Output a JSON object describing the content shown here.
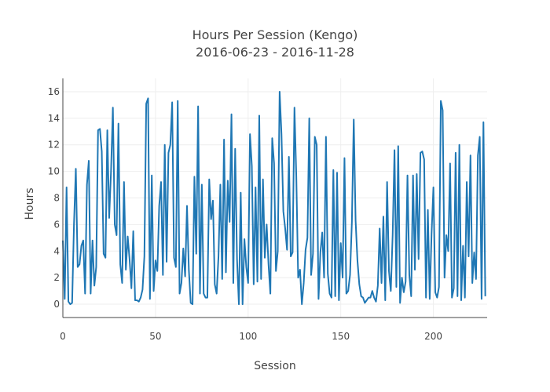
{
  "chart_data": {
    "type": "line",
    "title_line1": "Hours Per Session (Kengo)",
    "title_line2": "2016-06-23 - 2016-11-28",
    "xlabel": "Session",
    "ylabel": "Hours",
    "xlim": [
      0,
      229
    ],
    "ylim": [
      -1,
      17
    ],
    "x_ticks": [
      0,
      50,
      100,
      150,
      200
    ],
    "y_ticks": [
      0,
      2,
      4,
      6,
      8,
      10,
      12,
      14,
      16
    ],
    "grid": true,
    "line_color": "#1f77b4",
    "series": [
      {
        "values": [
          4.8,
          0.4,
          8.8,
          0.2,
          0.0,
          0.1,
          6.0,
          10.2,
          2.8,
          3.0,
          4.4,
          4.8,
          0.8,
          9.0,
          10.8,
          0.8,
          4.8,
          1.4,
          2.8,
          13.1,
          13.2,
          11.5,
          3.8,
          3.5,
          13.1,
          6.5,
          10.0,
          14.8,
          6.0,
          5.2,
          13.6,
          3.0,
          1.6,
          9.2,
          2.6,
          5.1,
          3.4,
          1.2,
          5.5,
          0.3,
          0.3,
          0.2,
          0.5,
          1.1,
          3.6,
          15.1,
          15.5,
          0.4,
          9.7,
          1.0,
          3.3,
          2.5,
          7.4,
          9.2,
          2.2,
          12.0,
          3.2,
          11.4,
          12.0,
          15.2,
          3.5,
          2.8,
          15.3,
          0.8,
          1.6,
          4.2,
          2.1,
          7.4,
          2.6,
          0.1,
          0.0,
          9.6,
          3.8,
          14.9,
          0.8,
          9.0,
          0.8,
          0.5,
          0.5,
          9.4,
          6.4,
          7.8,
          1.5,
          0.8,
          3.6,
          9.0,
          1.9,
          12.4,
          2.4,
          9.3,
          6.2,
          14.3,
          1.6,
          11.7,
          3.4,
          0.0,
          8.4,
          0.0,
          4.9,
          2.8,
          1.6,
          12.8,
          10.4,
          1.5,
          8.8,
          1.7,
          14.2,
          1.9,
          9.4,
          3.5,
          6.0,
          3.0,
          0.8,
          12.5,
          10.6,
          2.5,
          4.0,
          16.0,
          12.8,
          7.0,
          5.7,
          4.1,
          11.1,
          3.6,
          3.9,
          14.8,
          9.6,
          2.0,
          2.6,
          0.0,
          1.6,
          4.1,
          5.0,
          14.0,
          2.2,
          3.8,
          12.6,
          12.0,
          0.4,
          3.9,
          5.4,
          2.0,
          12.6,
          2.3,
          0.8,
          0.5,
          10.1,
          0.6,
          9.9,
          0.3,
          4.6,
          2.0,
          11.0,
          0.8,
          1.0,
          2.2,
          6.2,
          13.9,
          6.3,
          3.3,
          1.5,
          0.6,
          0.5,
          0.1,
          0.3,
          0.5,
          0.5,
          1.0,
          0.5,
          0.2,
          1.4,
          5.7,
          1.6,
          6.6,
          0.3,
          9.2,
          2.5,
          1.0,
          5.2,
          11.6,
          1.3,
          11.9,
          0.1,
          2.0,
          0.9,
          1.7,
          9.7,
          2.2,
          0.6,
          9.7,
          2.6,
          9.8,
          3.4,
          11.4,
          11.5,
          10.9,
          0.5,
          7.1,
          0.4,
          5.3,
          8.8,
          0.9,
          0.5,
          1.3,
          15.3,
          14.6,
          2.0,
          5.2,
          4.0,
          10.6,
          0.5,
          1.2,
          11.4,
          0.6,
          12.0,
          0.3,
          4.4,
          0.5,
          9.2,
          3.6,
          11.2,
          1.6,
          3.9,
          1.9,
          11.2,
          12.6,
          0.4,
          13.7,
          0.6
        ]
      }
    ]
  }
}
